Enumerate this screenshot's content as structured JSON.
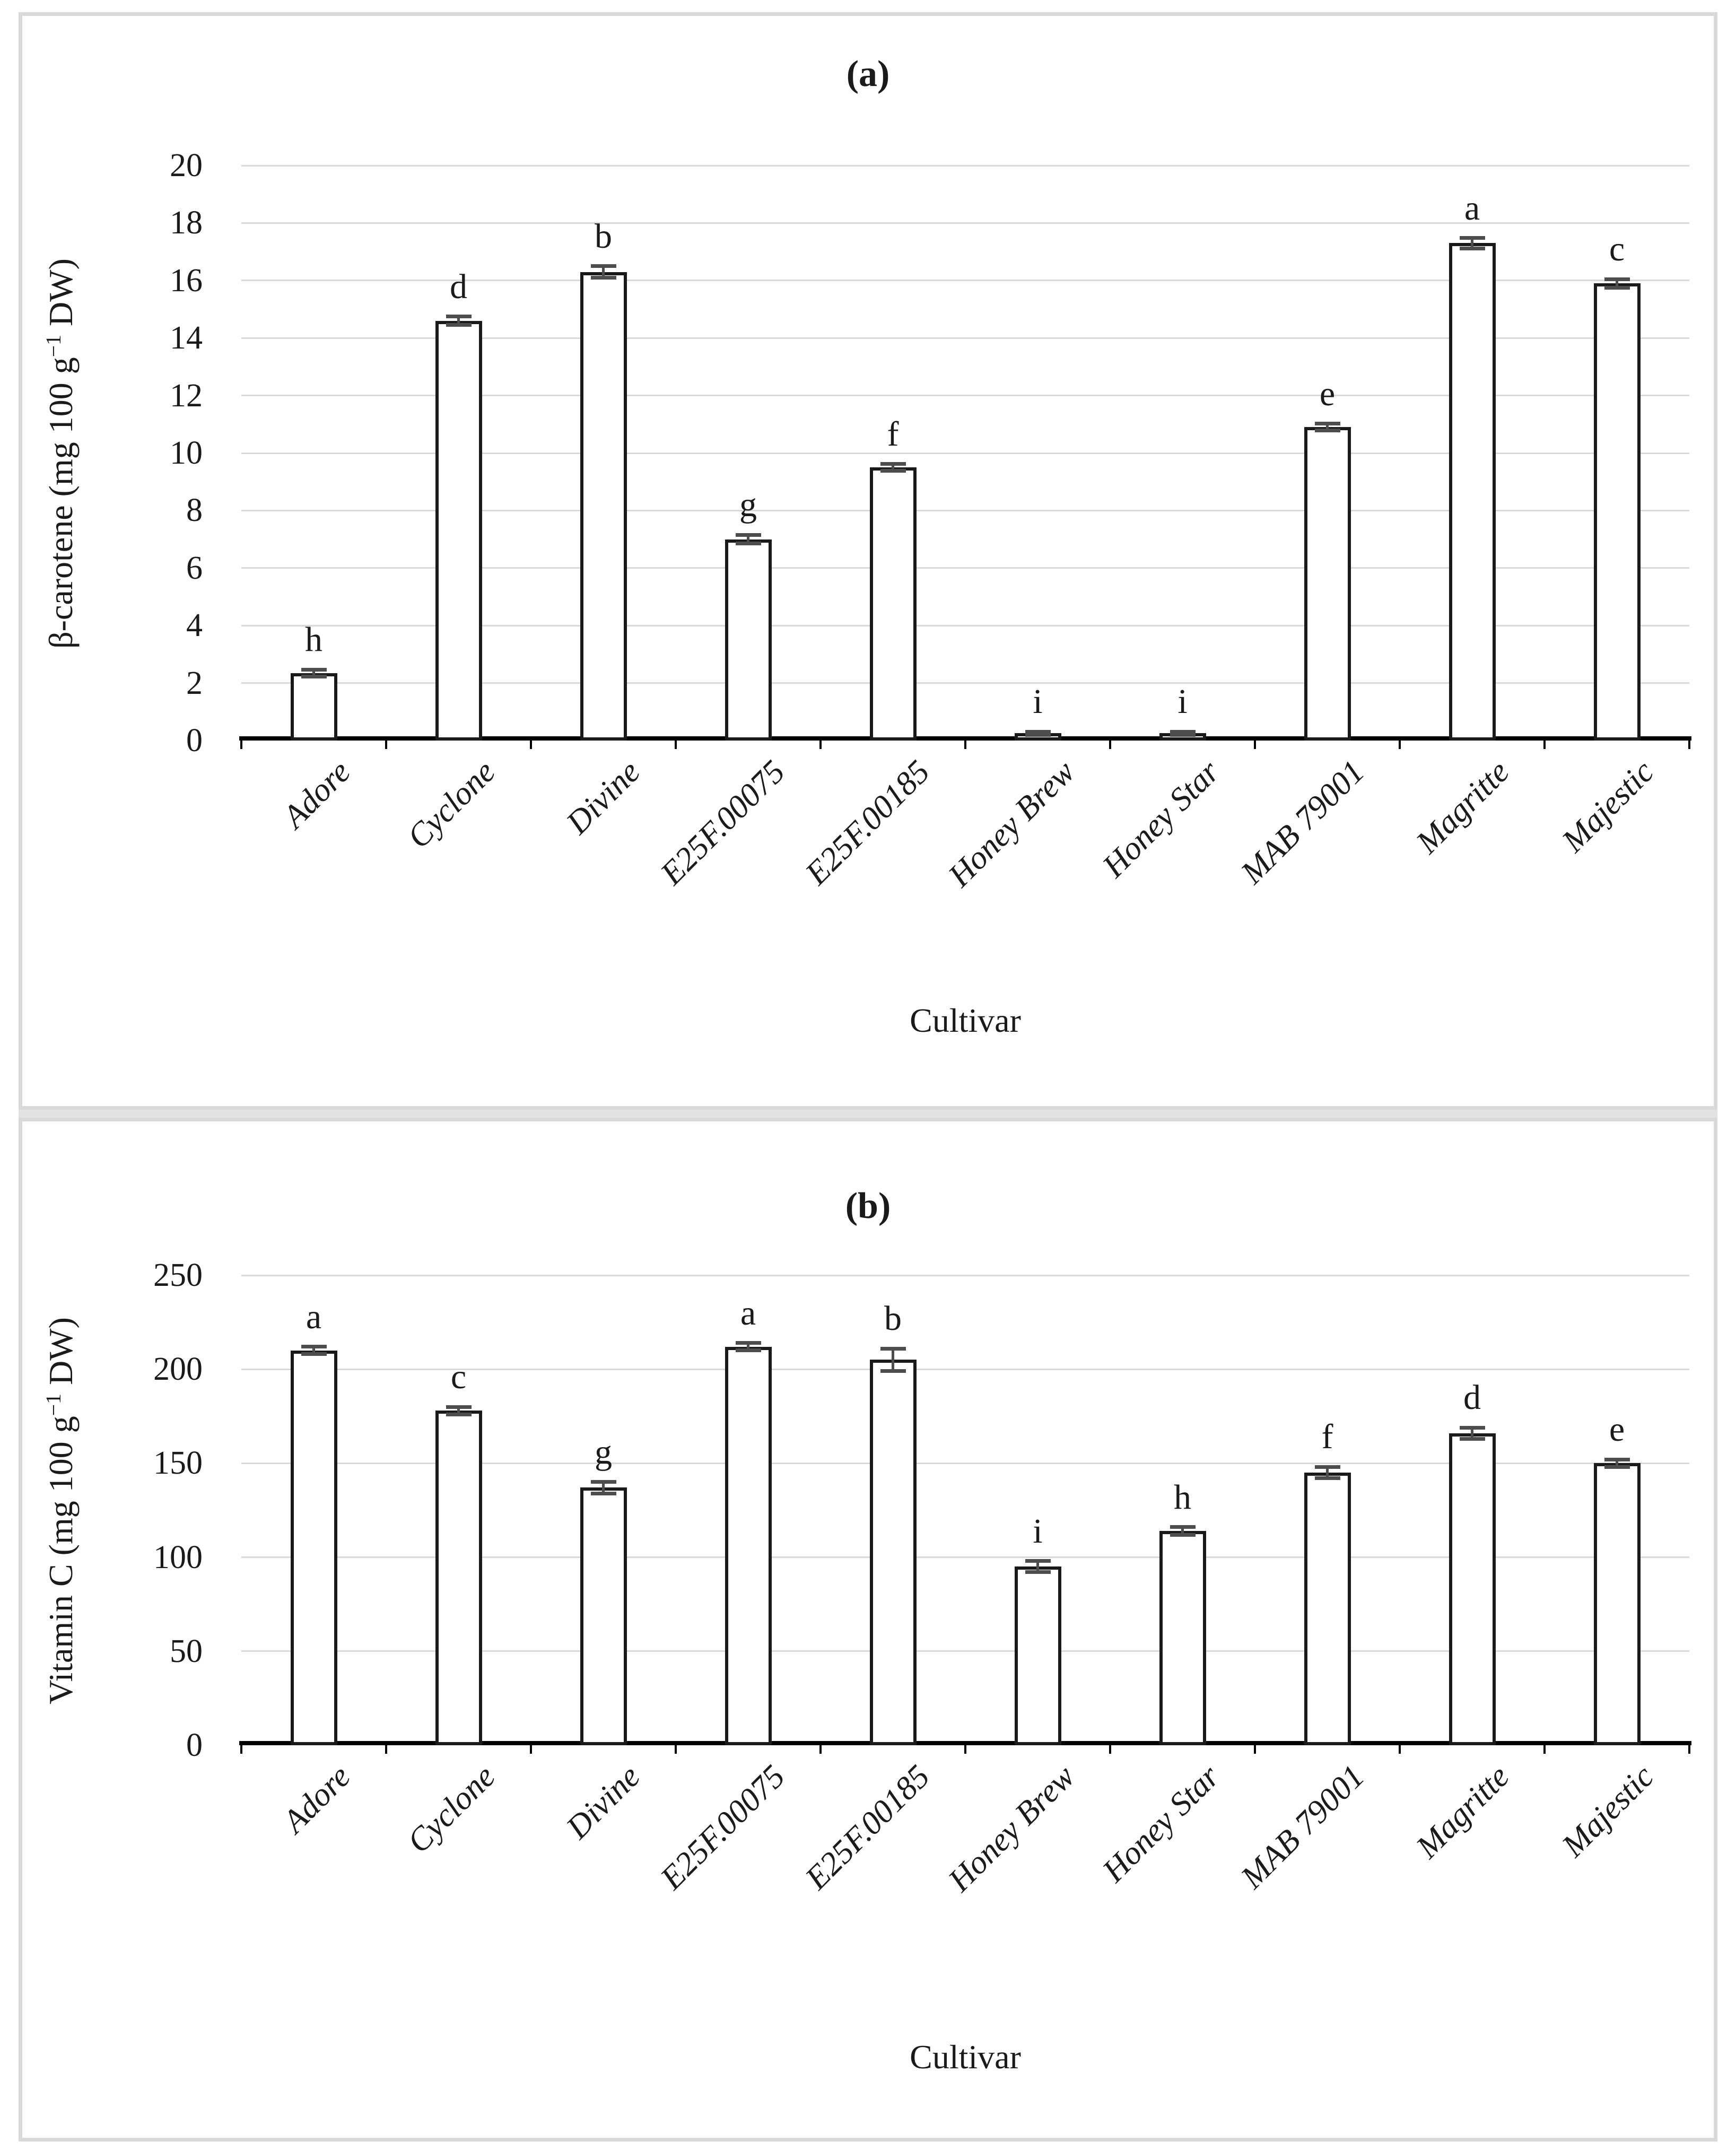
{
  "figure": {
    "background": "#ffffff",
    "panel_border_color": "#d9d9d9",
    "separator_color": "#e2e2e2"
  },
  "chart_data": [
    {
      "type": "bar",
      "panel_label": "(a)",
      "ylabel_parts": [
        "β-carotene (mg 100 g",
        "−1",
        " DW)"
      ],
      "xlabel": "Cultivar",
      "categories": [
        "Adore",
        "Cyclone",
        "Divine",
        "E25F.00075",
        "E25F.00185",
        "Honey Brew",
        "Honey Star",
        "MAB 79001",
        "Magritte",
        "Majestic"
      ],
      "values": [
        2.35,
        14.6,
        16.3,
        7.0,
        9.5,
        0.25,
        0.25,
        10.9,
        17.3,
        15.9
      ],
      "errors": [
        0.12,
        0.15,
        0.2,
        0.15,
        0.12,
        0.06,
        0.06,
        0.12,
        0.18,
        0.15
      ],
      "letters": [
        "h",
        "d",
        "b",
        "g",
        "f",
        "i",
        "i",
        "e",
        "a",
        "c"
      ],
      "ylim": [
        0,
        20
      ],
      "yticks": [
        0,
        2,
        4,
        6,
        8,
        10,
        12,
        14,
        16,
        18,
        20
      ],
      "grid": true,
      "legend_position": "none",
      "bar_fill": "#ffffff",
      "bar_border": "#1a1a1a",
      "error_color": "#4d4d4d",
      "grid_color": "#d9d9d9",
      "axis_color": "#000000"
    },
    {
      "type": "bar",
      "panel_label": "(b)",
      "ylabel_parts": [
        "Vitamin C (mg 100 g",
        "−1",
        " DW)"
      ],
      "xlabel": "Cultivar",
      "categories": [
        "Adore",
        "Cyclone",
        "Divine",
        "E25F.00075",
        "E25F.00185",
        "Honey Brew",
        "Honey Star",
        "MAB 79001",
        "Magritte",
        "Majestic"
      ],
      "values": [
        210,
        178,
        137,
        212,
        205,
        95,
        114,
        145,
        166,
        150
      ],
      "errors": [
        2,
        2,
        3,
        2,
        6,
        3,
        2,
        3,
        3,
        2
      ],
      "letters": [
        "a",
        "c",
        "g",
        "a",
        "b",
        "i",
        "h",
        "f",
        "d",
        "e"
      ],
      "ylim": [
        0,
        250
      ],
      "yticks": [
        0,
        50,
        100,
        150,
        200,
        250
      ],
      "grid": true,
      "legend_position": "none",
      "bar_fill": "#ffffff",
      "bar_border": "#1a1a1a",
      "error_color": "#4d4d4d",
      "grid_color": "#d9d9d9",
      "axis_color": "#000000"
    }
  ]
}
